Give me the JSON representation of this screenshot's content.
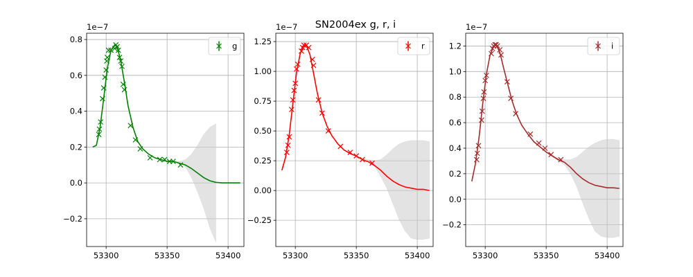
{
  "figure": {
    "suptitle": "SN2004ex  g, r, i"
  },
  "chart_data": [
    {
      "type": "line",
      "band": "g",
      "color": "#008000",
      "offset_text": "1e−7",
      "xlim": [
        53284,
        53413
      ],
      "ylim": [
        -0.355,
        0.835
      ],
      "xticks": [
        53300,
        53350,
        53400
      ],
      "yticks": [
        -0.2,
        0.0,
        0.2,
        0.4,
        0.6,
        0.8
      ],
      "ytick_labels": [
        "−0.2",
        "0.0",
        "0.2",
        "0.4",
        "0.6",
        "0.8"
      ],
      "grid": true,
      "legend": {
        "label": "g",
        "location": "upper right"
      },
      "points": [
        {
          "x": 53294,
          "y": 0.27
        },
        {
          "x": 53294.5,
          "y": 0.3
        },
        {
          "x": 53295.5,
          "y": 0.34
        },
        {
          "x": 53297,
          "y": 0.47
        },
        {
          "x": 53298,
          "y": 0.53
        },
        {
          "x": 53299,
          "y": 0.59
        },
        {
          "x": 53300,
          "y": 0.63
        },
        {
          "x": 53300.5,
          "y": 0.68
        },
        {
          "x": 53301,
          "y": 0.7
        },
        {
          "x": 53302,
          "y": 0.74
        },
        {
          "x": 53304,
          "y": 0.74
        },
        {
          "x": 53307,
          "y": 0.75
        },
        {
          "x": 53308,
          "y": 0.77
        },
        {
          "x": 53309,
          "y": 0.76
        },
        {
          "x": 53310,
          "y": 0.74
        },
        {
          "x": 53311,
          "y": 0.7
        },
        {
          "x": 53312,
          "y": 0.68
        },
        {
          "x": 53313,
          "y": 0.65
        },
        {
          "x": 53314,
          "y": 0.55
        },
        {
          "x": 53315,
          "y": 0.52
        },
        {
          "x": 53320,
          "y": 0.32
        },
        {
          "x": 53324,
          "y": 0.24
        },
        {
          "x": 53328,
          "y": 0.19
        },
        {
          "x": 53336,
          "y": 0.14
        },
        {
          "x": 53344,
          "y": 0.13
        },
        {
          "x": 53348,
          "y": 0.13
        },
        {
          "x": 53352,
          "y": 0.12
        },
        {
          "x": 53355,
          "y": 0.12
        },
        {
          "x": 53361,
          "y": 0.1
        }
      ],
      "model": {
        "x": [
          53289,
          53292,
          53295,
          53298,
          53301,
          53304,
          53307,
          53309,
          53312,
          53315,
          53318,
          53322,
          53326,
          53330,
          53335,
          53340,
          53345,
          53350,
          53355,
          53360,
          53365,
          53370,
          53375,
          53380,
          53385,
          53390,
          53395,
          53400,
          53405,
          53410
        ],
        "y": [
          0.2,
          0.21,
          0.31,
          0.47,
          0.64,
          0.74,
          0.77,
          0.76,
          0.68,
          0.56,
          0.43,
          0.31,
          0.23,
          0.19,
          0.16,
          0.14,
          0.13,
          0.12,
          0.12,
          0.11,
          0.1,
          0.08,
          0.055,
          0.03,
          0.012,
          0.003,
          0.0,
          0.0,
          0.0,
          0.0
        ]
      },
      "band_lower": [
        0.2,
        0.21,
        0.31,
        0.47,
        0.64,
        0.74,
        0.77,
        0.76,
        0.68,
        0.56,
        0.43,
        0.31,
        0.23,
        0.19,
        0.16,
        0.14,
        0.13,
        0.12,
        0.12,
        0.11,
        0.09,
        0.03,
        -0.05,
        -0.14,
        -0.25,
        -0.33,
        0.0,
        0.0,
        0.0,
        0.0
      ],
      "band_upper": [
        0.2,
        0.21,
        0.31,
        0.47,
        0.64,
        0.74,
        0.77,
        0.76,
        0.68,
        0.56,
        0.43,
        0.31,
        0.23,
        0.19,
        0.16,
        0.14,
        0.13,
        0.12,
        0.12,
        0.12,
        0.13,
        0.16,
        0.21,
        0.27,
        0.31,
        0.33,
        0.0,
        0.0,
        0.0,
        0.0
      ],
      "band_end": 53390
    },
    {
      "type": "line",
      "band": "r",
      "color": "#ff0000",
      "offset_text": "1e−7",
      "xlim": [
        53284,
        53413
      ],
      "ylim": [
        -0.47,
        1.32
      ],
      "xticks": [
        53300,
        53350,
        53400
      ],
      "yticks": [
        -0.25,
        0.0,
        0.25,
        0.5,
        0.75,
        1.0,
        1.25
      ],
      "ytick_labels": [
        "−0.25",
        "0.00",
        "0.25",
        "0.50",
        "0.75",
        "1.00",
        "1.25"
      ],
      "grid": true,
      "legend": {
        "label": "r",
        "location": "upper right"
      },
      "points": [
        {
          "x": 53293,
          "y": 0.32
        },
        {
          "x": 53294,
          "y": 0.38
        },
        {
          "x": 53295,
          "y": 0.45
        },
        {
          "x": 53297,
          "y": 0.68
        },
        {
          "x": 53298,
          "y": 0.76
        },
        {
          "x": 53299,
          "y": 0.84
        },
        {
          "x": 53300,
          "y": 0.9
        },
        {
          "x": 53301,
          "y": 1.02
        },
        {
          "x": 53302,
          "y": 1.06
        },
        {
          "x": 53305,
          "y": 1.17
        },
        {
          "x": 53306,
          "y": 1.2
        },
        {
          "x": 53307,
          "y": 1.22
        },
        {
          "x": 53309,
          "y": 1.22
        },
        {
          "x": 53311,
          "y": 1.2
        },
        {
          "x": 53314,
          "y": 1.1
        },
        {
          "x": 53315,
          "y": 1.05
        },
        {
          "x": 53319,
          "y": 0.76
        },
        {
          "x": 53322,
          "y": 0.65
        },
        {
          "x": 53327,
          "y": 0.5
        },
        {
          "x": 53337,
          "y": 0.37
        },
        {
          "x": 53345,
          "y": 0.32
        },
        {
          "x": 53350,
          "y": 0.29
        },
        {
          "x": 53355,
          "y": 0.26
        },
        {
          "x": 53363,
          "y": 0.23
        }
      ],
      "model": {
        "x": [
          53289,
          53292,
          53295,
          53298,
          53301,
          53304,
          53307,
          53309,
          53312,
          53315,
          53318,
          53322,
          53326,
          53330,
          53335,
          53340,
          53345,
          53350,
          53355,
          53360,
          53365,
          53370,
          53375,
          53380,
          53385,
          53390,
          53395,
          53400,
          53405,
          53410
        ],
        "y": [
          0.17,
          0.28,
          0.47,
          0.73,
          0.99,
          1.15,
          1.22,
          1.22,
          1.14,
          0.98,
          0.82,
          0.65,
          0.54,
          0.46,
          0.39,
          0.34,
          0.31,
          0.29,
          0.26,
          0.24,
          0.21,
          0.17,
          0.12,
          0.08,
          0.05,
          0.03,
          0.02,
          0.01,
          0.01,
          0.0
        ]
      },
      "band_lower": [
        0.17,
        0.28,
        0.47,
        0.73,
        0.99,
        1.15,
        1.22,
        1.22,
        1.14,
        0.98,
        0.82,
        0.65,
        0.54,
        0.46,
        0.39,
        0.34,
        0.31,
        0.29,
        0.26,
        0.24,
        0.2,
        0.12,
        0.02,
        -0.11,
        -0.24,
        -0.34,
        -0.4,
        -0.41,
        -0.41,
        -0.4
      ],
      "band_upper": [
        0.17,
        0.28,
        0.47,
        0.73,
        0.99,
        1.15,
        1.22,
        1.22,
        1.14,
        0.98,
        0.82,
        0.65,
        0.54,
        0.46,
        0.39,
        0.34,
        0.31,
        0.29,
        0.27,
        0.26,
        0.25,
        0.26,
        0.3,
        0.35,
        0.39,
        0.41,
        0.42,
        0.42,
        0.42,
        0.41
      ],
      "band_end": 53410
    },
    {
      "type": "line",
      "band": "i",
      "color": "#a52a2a",
      "offset_text": "1e−7",
      "xlim": [
        53284,
        53413
      ],
      "ylim": [
        -0.37,
        1.3
      ],
      "xticks": [
        53300,
        53350,
        53400
      ],
      "yticks": [
        -0.2,
        0.0,
        0.2,
        0.4,
        0.6,
        0.8,
        1.0,
        1.2
      ],
      "ytick_labels": [
        "−0.2",
        "0.0",
        "0.2",
        "0.4",
        "0.6",
        "0.8",
        "1.0",
        "1.2"
      ],
      "grid": true,
      "legend": {
        "label": "i",
        "location": "upper right"
      },
      "points": [
        {
          "x": 53293,
          "y": 0.31
        },
        {
          "x": 53293.5,
          "y": 0.36
        },
        {
          "x": 53294.5,
          "y": 0.42
        },
        {
          "x": 53297,
          "y": 0.62
        },
        {
          "x": 53297.5,
          "y": 0.69
        },
        {
          "x": 53298.5,
          "y": 0.79
        },
        {
          "x": 53299,
          "y": 0.84
        },
        {
          "x": 53300,
          "y": 0.93
        },
        {
          "x": 53301,
          "y": 0.97
        },
        {
          "x": 53305,
          "y": 1.14
        },
        {
          "x": 53306,
          "y": 1.18
        },
        {
          "x": 53307,
          "y": 1.2
        },
        {
          "x": 53308,
          "y": 1.21
        },
        {
          "x": 53309,
          "y": 1.21
        },
        {
          "x": 53310,
          "y": 1.2
        },
        {
          "x": 53312,
          "y": 1.17
        },
        {
          "x": 53313,
          "y": 1.13
        },
        {
          "x": 53318,
          "y": 0.92
        },
        {
          "x": 53321,
          "y": 0.79
        },
        {
          "x": 53325,
          "y": 0.67
        },
        {
          "x": 53337,
          "y": 0.51
        },
        {
          "x": 53344,
          "y": 0.44
        },
        {
          "x": 53349,
          "y": 0.4
        },
        {
          "x": 53354,
          "y": 0.35
        },
        {
          "x": 53362,
          "y": 0.31
        }
      ],
      "model": {
        "x": [
          53289,
          53292,
          53295,
          53298,
          53301,
          53304,
          53307,
          53309,
          53312,
          53315,
          53318,
          53322,
          53326,
          53330,
          53335,
          53340,
          53345,
          53350,
          53355,
          53360,
          53365,
          53370,
          53375,
          53380,
          53385,
          53390,
          53395,
          53400,
          53405,
          53410
        ],
        "y": [
          0.14,
          0.28,
          0.49,
          0.75,
          0.98,
          1.13,
          1.2,
          1.21,
          1.15,
          1.03,
          0.92,
          0.77,
          0.66,
          0.58,
          0.51,
          0.45,
          0.41,
          0.37,
          0.34,
          0.31,
          0.29,
          0.25,
          0.2,
          0.16,
          0.13,
          0.11,
          0.1,
          0.09,
          0.09,
          0.085
        ]
      },
      "band_lower": [
        0.14,
        0.28,
        0.49,
        0.75,
        0.98,
        1.13,
        1.2,
        1.21,
        1.15,
        1.03,
        0.92,
        0.77,
        0.66,
        0.58,
        0.51,
        0.45,
        0.41,
        0.37,
        0.33,
        0.3,
        0.27,
        0.2,
        0.1,
        -0.03,
        -0.15,
        -0.25,
        -0.29,
        -0.3,
        -0.3,
        -0.29
      ],
      "band_upper": [
        0.14,
        0.28,
        0.49,
        0.75,
        0.98,
        1.13,
        1.2,
        1.21,
        1.15,
        1.03,
        0.92,
        0.77,
        0.66,
        0.58,
        0.51,
        0.45,
        0.41,
        0.37,
        0.34,
        0.32,
        0.31,
        0.31,
        0.33,
        0.37,
        0.41,
        0.44,
        0.46,
        0.47,
        0.47,
        0.46
      ],
      "band_end": 53410
    }
  ]
}
